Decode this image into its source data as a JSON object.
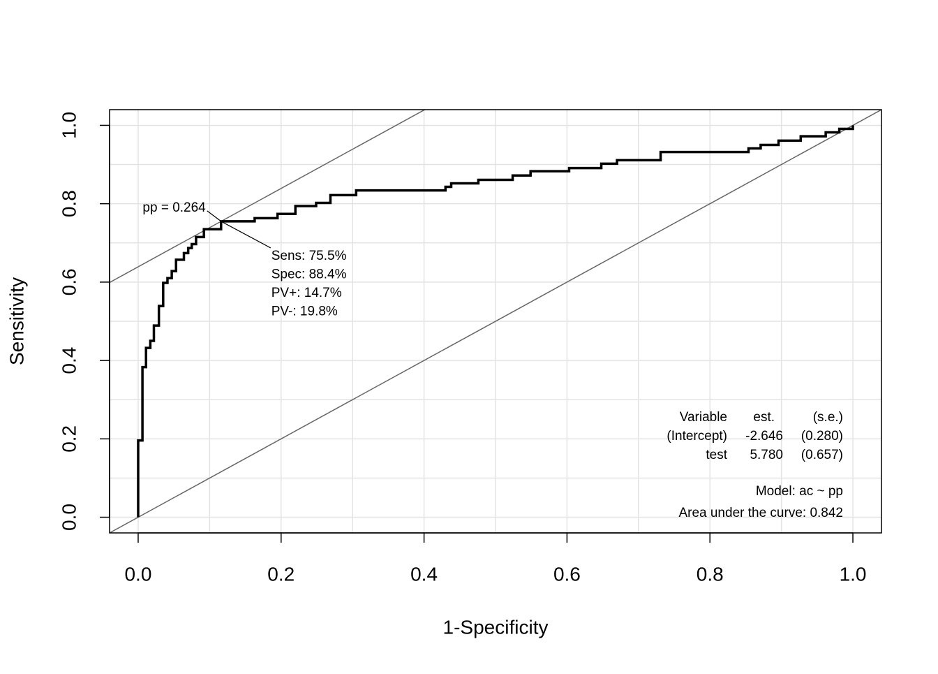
{
  "chart_data": {
    "type": "roc",
    "xlabel": "1-Specificity",
    "ylabel": "Sensitivity",
    "xlim": [
      -0.04,
      1.04
    ],
    "ylim": [
      -0.04,
      1.04
    ],
    "xticks": [
      {
        "value": 0,
        "label": "0.0"
      },
      0.2,
      0.4,
      0.6,
      0.8,
      {
        "value": 1,
        "label": "1.0"
      }
    ],
    "yticks": [
      {
        "value": 0,
        "label": "0.0"
      },
      0.2,
      0.4,
      0.6,
      0.8,
      {
        "value": 1,
        "label": "1.0"
      }
    ],
    "xgrid": [
      0,
      0.1,
      0.2,
      0.3,
      0.4,
      0.5,
      0.6,
      0.7,
      0.8,
      0.9,
      1
    ],
    "ygrid": [
      0,
      0.1,
      0.2,
      0.3,
      0.4,
      0.5,
      0.6,
      0.7,
      0.8,
      0.9,
      1
    ],
    "grid": true,
    "step": "hv",
    "color": "#000000",
    "x": [
      0,
      0,
      0.006,
      0.011,
      0.017,
      0.022,
      0.029,
      0.035,
      0.041,
      0.047,
      0.053,
      0.064,
      0.07,
      0.075,
      0.081,
      0.092,
      0.098,
      0.116,
      0.163,
      0.195,
      0.22,
      0.249,
      0.269,
      0.305,
      0.43,
      0.438,
      0.476,
      0.524,
      0.549,
      0.603,
      0.648,
      0.67,
      0.731,
      0.854,
      0.871,
      0.896,
      0.927,
      0.962,
      0.981,
      1.0
    ],
    "y": [
      0,
      0.196,
      0.383,
      0.432,
      0.45,
      0.489,
      0.539,
      0.598,
      0.61,
      0.628,
      0.657,
      0.674,
      0.687,
      0.697,
      0.715,
      0.735,
      0.735,
      0.755,
      0.763,
      0.774,
      0.794,
      0.802,
      0.822,
      0.834,
      0.843,
      0.852,
      0.861,
      0.872,
      0.883,
      0.891,
      0.902,
      0.911,
      0.932,
      0.941,
      0.95,
      0.961,
      0.972,
      0.982,
      0.991,
      1.0
    ],
    "reference_lines": [
      {
        "intercept": 0,
        "slope": 1
      },
      {
        "intercept": 0.639,
        "slope": 1
      }
    ],
    "optimal": {
      "x": 0.116,
      "y": 0.755,
      "label": "pp = 0.264",
      "stats": [
        "Sens: 75.5%",
        "Spec: 88.4%",
        "PV+: 14.7%",
        "PV-: 19.8%"
      ]
    },
    "table": {
      "header": [
        "Variable",
        "est.",
        "(s.e.)"
      ],
      "rows": [
        [
          "(Intercept)",
          "-2.646",
          "(0.280)"
        ],
        [
          "test",
          "5.780",
          "(0.657)"
        ]
      ]
    },
    "model": "Model:  ac ~ pp",
    "auc": "Area under the curve: 0.842"
  }
}
